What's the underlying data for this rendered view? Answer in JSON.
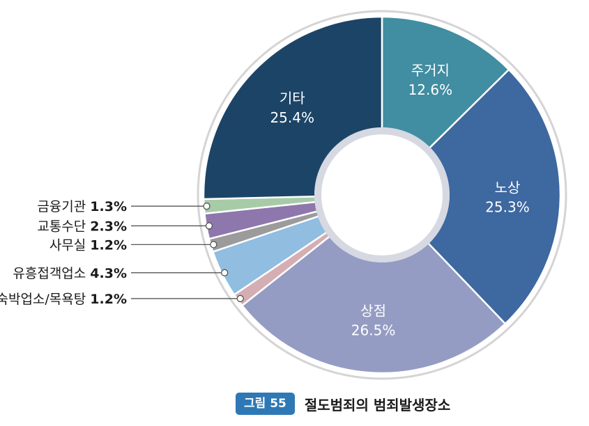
{
  "chart_data": {
    "type": "pie",
    "subtype": "donut",
    "slices": [
      {
        "label": "주거지",
        "value": 12.6,
        "display": "12.6%",
        "color": "#418da1",
        "text_color": "#ffffff"
      },
      {
        "label": "노상",
        "value": 25.3,
        "display": "25.3%",
        "color": "#3d68a0",
        "text_color": "#ffffff"
      },
      {
        "label": "상점",
        "value": 26.5,
        "display": "26.5%",
        "color": "#959cc3",
        "text_color": "#ffffff"
      },
      {
        "label": "숙박업소/목욕탕",
        "value": 1.2,
        "display": "1.2%",
        "color": "#d4aeb2",
        "text_color": "#1a1a1a"
      },
      {
        "label": "유흥접객업소",
        "value": 4.3,
        "display": "4.3%",
        "color": "#90bde0",
        "text_color": "#1a1a1a"
      },
      {
        "label": "사무실",
        "value": 1.2,
        "display": "1.2%",
        "color": "#9b9b9b",
        "text_color": "#1a1a1a"
      },
      {
        "label": "교통수단",
        "value": 2.3,
        "display": "2.3%",
        "color": "#8e77ad",
        "text_color": "#1a1a1a"
      },
      {
        "label": "금융기관",
        "value": 1.3,
        "display": "1.3%",
        "color": "#a7cba7",
        "text_color": "#1a1a1a"
      },
      {
        "label": "기타",
        "value": 25.4,
        "display": "25.4%",
        "color": "#1c4466",
        "text_color": "#ffffff"
      }
    ],
    "legend": "none"
  },
  "caption": {
    "badge": "그림 55",
    "title": "절도범죄의 범죄발생장소"
  }
}
